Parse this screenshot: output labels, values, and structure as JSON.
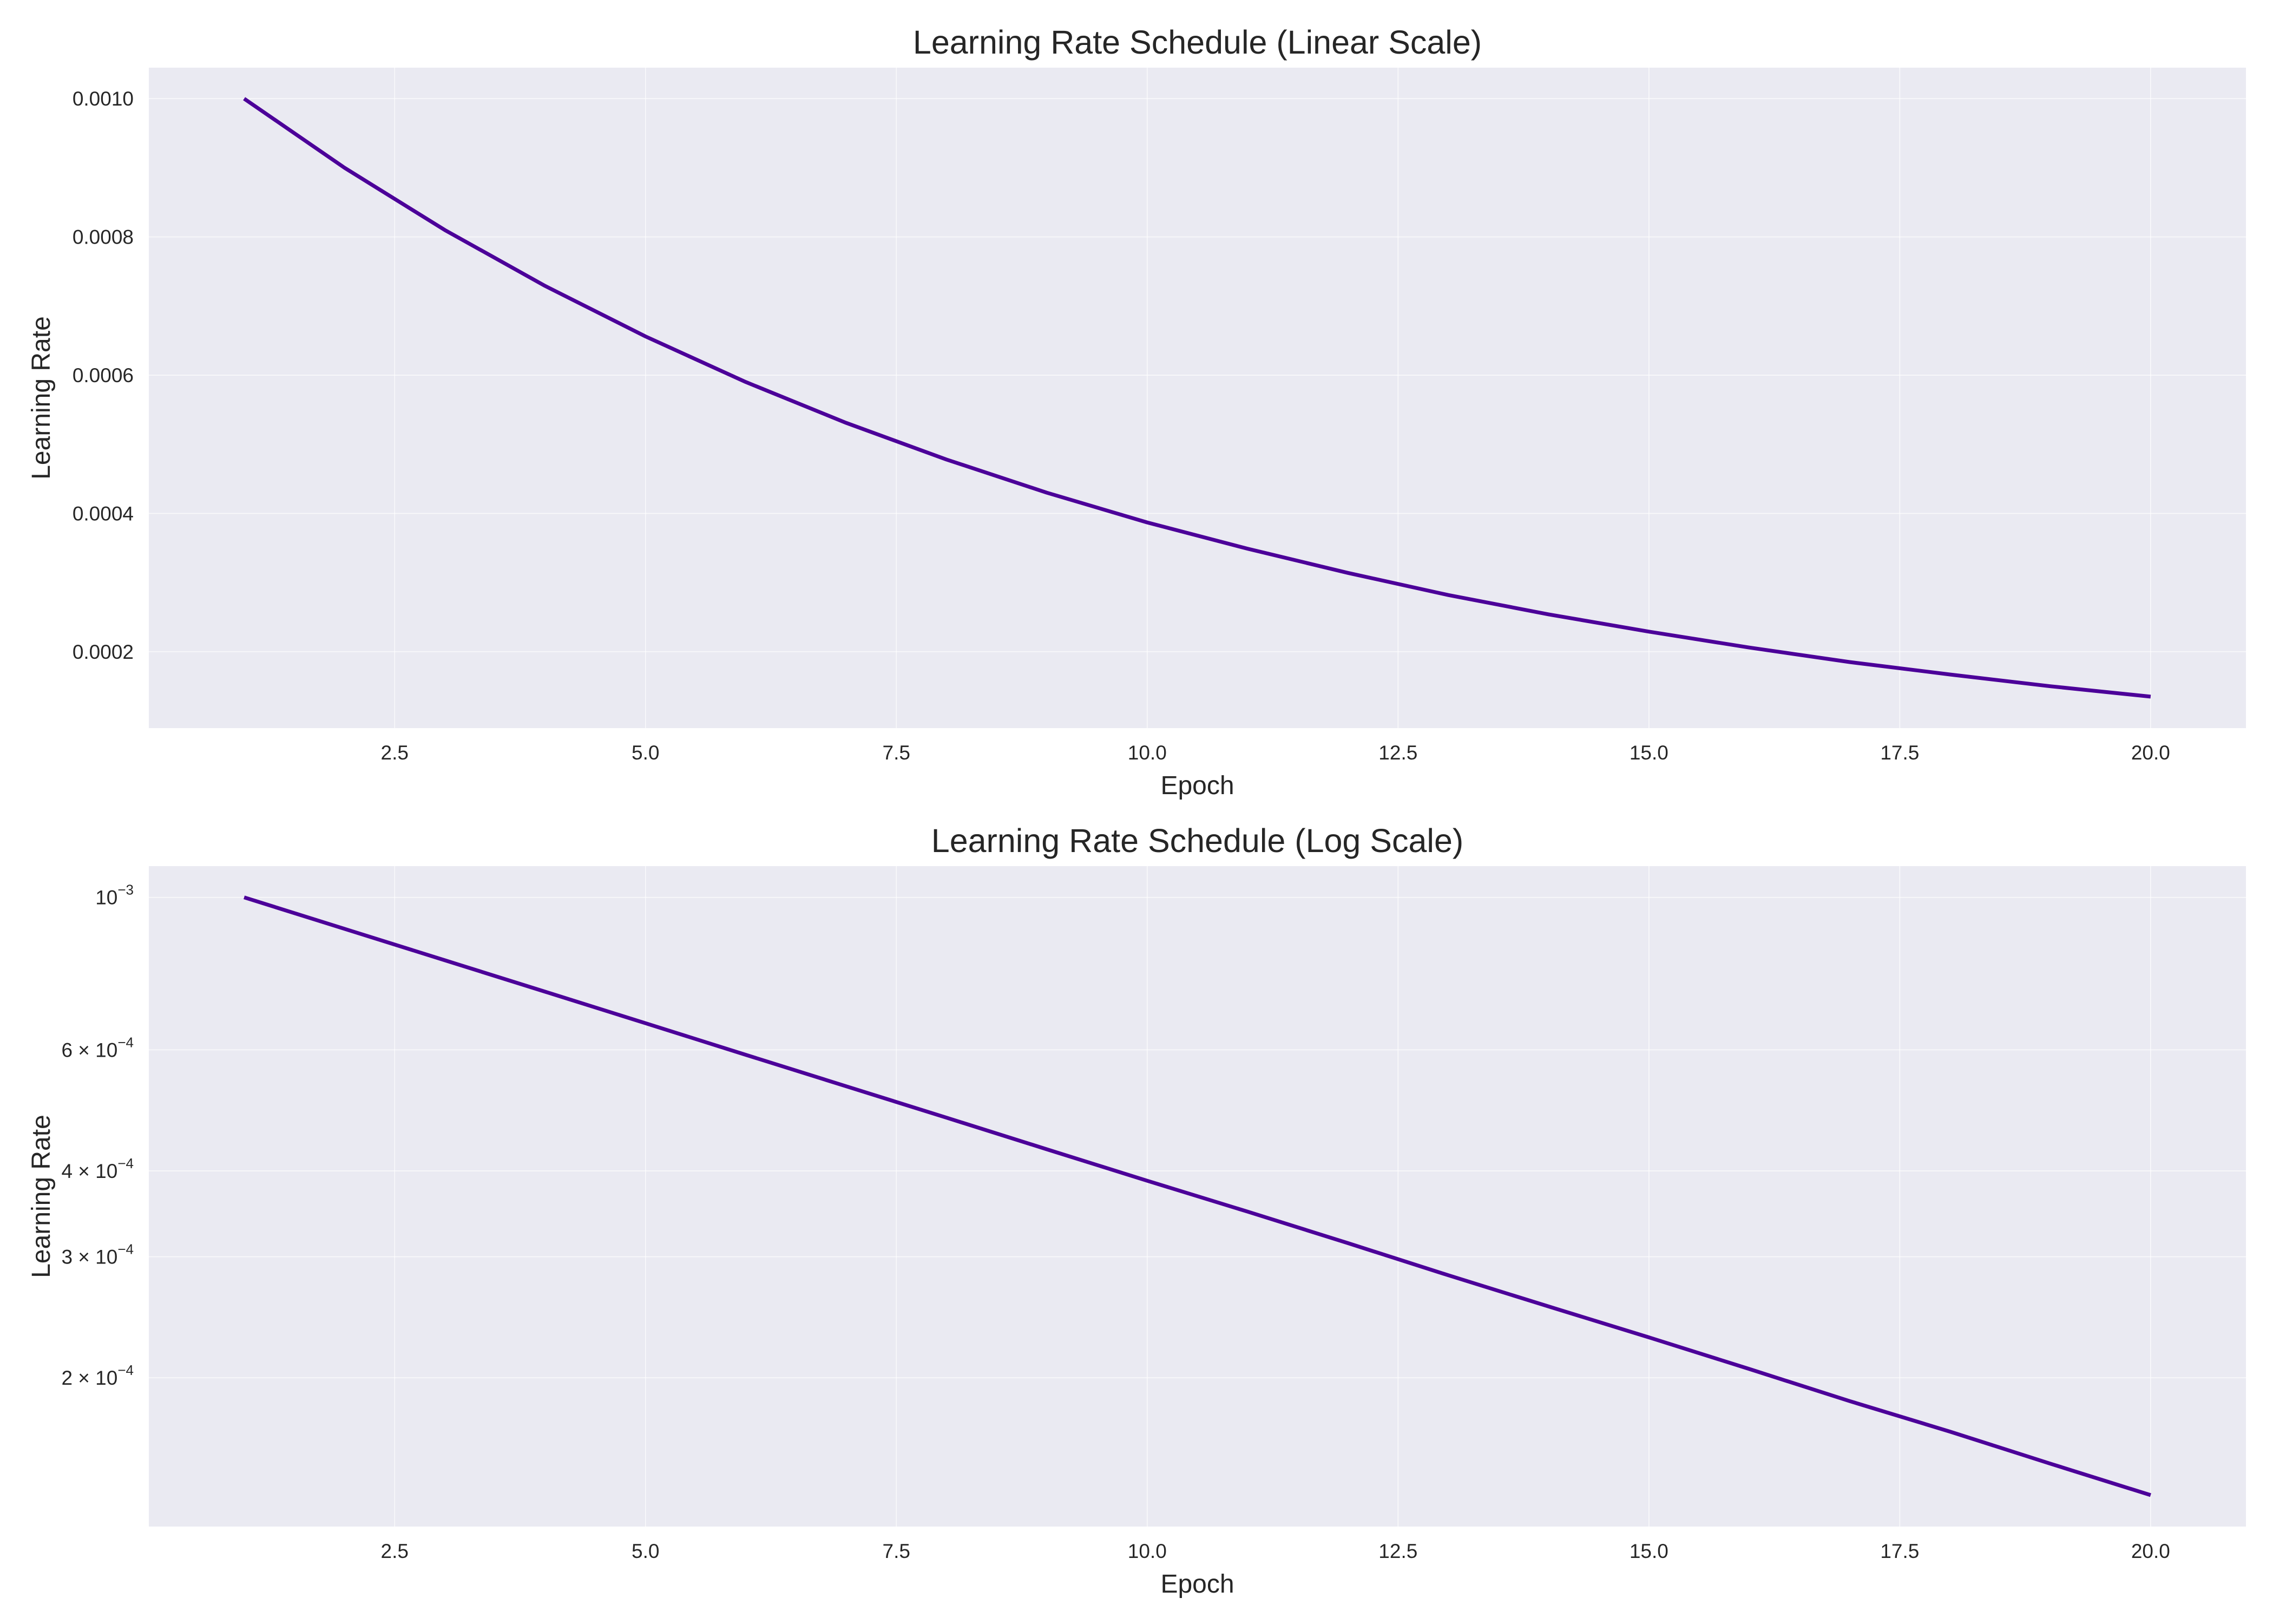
{
  "chart_data": [
    {
      "type": "line",
      "title": "Learning Rate Schedule (Linear Scale)",
      "xlabel": "Epoch",
      "ylabel": "Learning Rate",
      "yscale": "linear",
      "xlim": [
        0.05,
        20.95
      ],
      "ylim": [
        8.95e-05,
        0.0010448
      ],
      "xticks": [
        2.5,
        5.0,
        7.5,
        10.0,
        12.5,
        15.0,
        17.5,
        20.0
      ],
      "xtick_labels": [
        "2.5",
        "5.0",
        "7.5",
        "10.0",
        "12.5",
        "15.0",
        "17.5",
        "20.0"
      ],
      "yticks": [
        0.0002,
        0.0004,
        0.0006,
        0.0008,
        0.001
      ],
      "ytick_labels": [
        "0.0002",
        "0.0004",
        "0.0006",
        "0.0008",
        "0.0010"
      ],
      "grid": true,
      "x": [
        1,
        2,
        3,
        4,
        5,
        6,
        7,
        8,
        9,
        10,
        11,
        12,
        13,
        14,
        15,
        16,
        17,
        18,
        19,
        20
      ],
      "series": [
        {
          "values": [
            0.001,
            0.0009,
            0.00081,
            0.000729,
            0.000656,
            0.00059,
            0.000531,
            0.000478,
            0.00043,
            0.000387,
            0.000349,
            0.000314,
            0.000282,
            0.000254,
            0.000229,
            0.000206,
            0.000185,
            0.000167,
            0.00015,
            0.000135
          ],
          "color": "#4c0099"
        }
      ]
    },
    {
      "type": "line",
      "title": "Learning Rate Schedule (Log Scale)",
      "xlabel": "Epoch",
      "ylabel": "Learning Rate",
      "yscale": "log",
      "xlim": [
        0.05,
        20.95
      ],
      "ylim": [
        0.0001215,
        0.0011103
      ],
      "xticks": [
        2.5,
        5.0,
        7.5,
        10.0,
        12.5,
        15.0,
        17.5,
        20.0
      ],
      "xtick_labels": [
        "2.5",
        "5.0",
        "7.5",
        "10.0",
        "12.5",
        "15.0",
        "17.5",
        "20.0"
      ],
      "yticks": [
        0.001,
        0.0006,
        0.0004,
        0.0003,
        0.0002
      ],
      "ytick_labels": [
        {
          "base": "10",
          "exp": "−3"
        },
        {
          "base": "6 × 10",
          "exp": "−4"
        },
        {
          "base": "4 × 10",
          "exp": "−4"
        },
        {
          "base": "3 × 10",
          "exp": "−4"
        },
        {
          "base": "2 × 10",
          "exp": "−4"
        }
      ],
      "grid": true,
      "x": [
        1,
        2,
        3,
        4,
        5,
        6,
        7,
        8,
        9,
        10,
        11,
        12,
        13,
        14,
        15,
        16,
        17,
        18,
        19,
        20
      ],
      "series": [
        {
          "values": [
            0.001,
            0.0009,
            0.00081,
            0.000729,
            0.000656,
            0.00059,
            0.000531,
            0.000478,
            0.00043,
            0.000387,
            0.000349,
            0.000314,
            0.000282,
            0.000254,
            0.000229,
            0.000206,
            0.000185,
            0.000167,
            0.00015,
            0.000135
          ],
          "color": "#4c0099"
        }
      ]
    }
  ],
  "colors": {
    "plot_background": "#eaeaf2",
    "grid": "#ffffff",
    "text": "#262626"
  }
}
